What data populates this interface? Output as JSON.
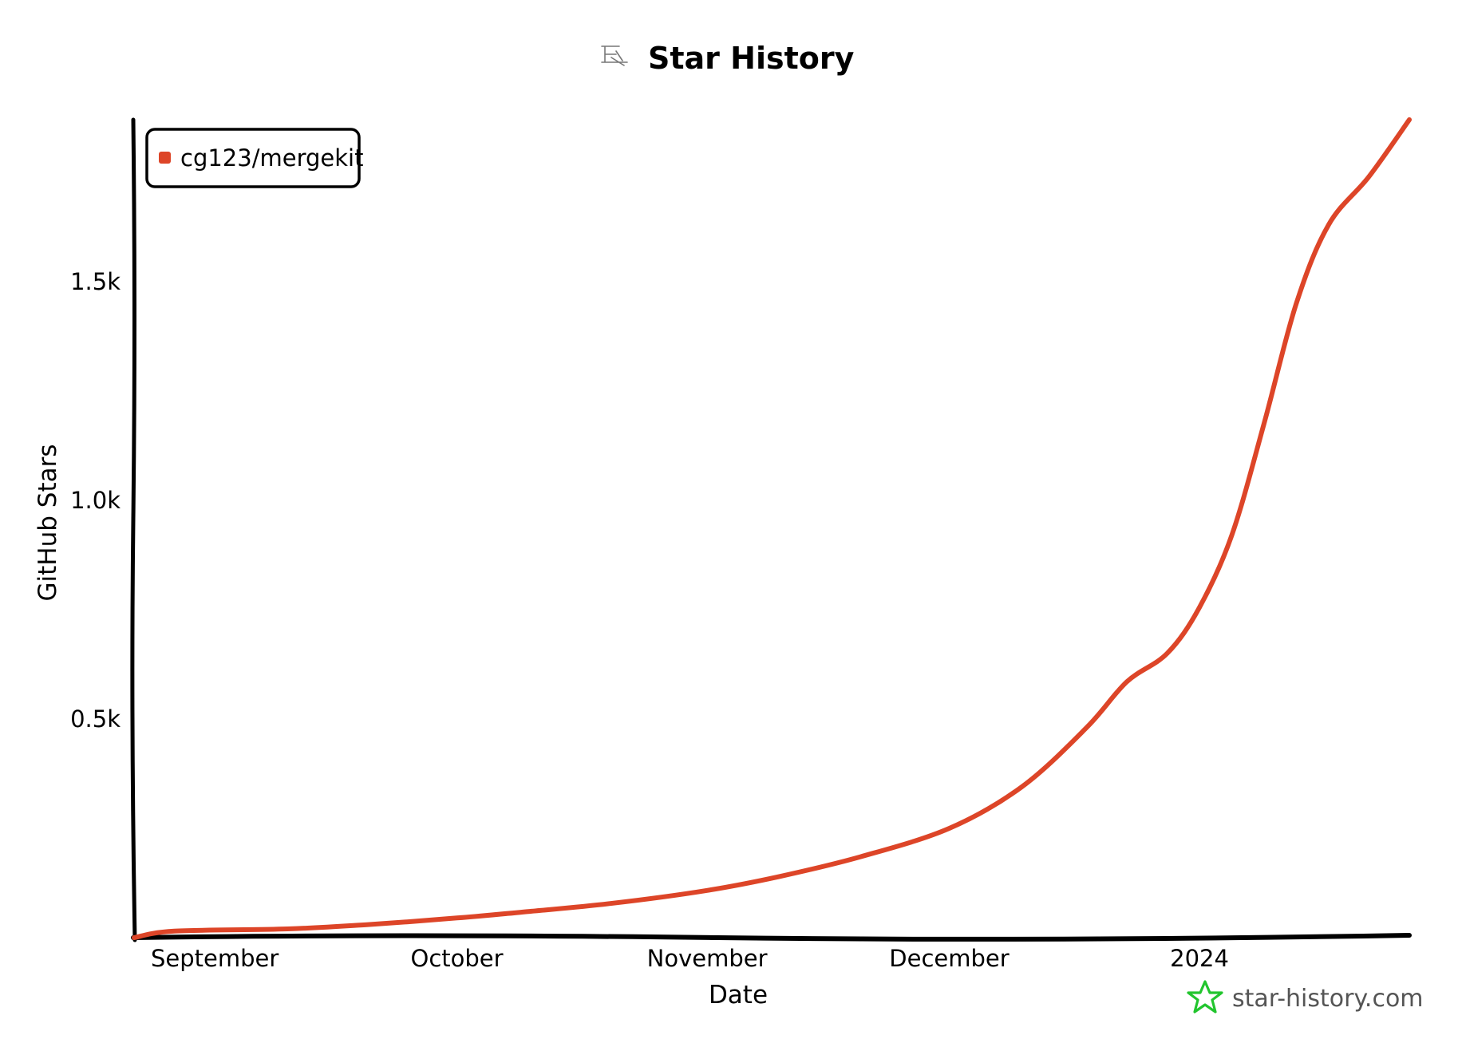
{
  "chart_data": {
    "type": "line",
    "title": "Star History",
    "xlabel": "Date",
    "ylabel": "GitHub Stars",
    "x_tick_labels": [
      "September",
      "October",
      "November",
      "December",
      "2024"
    ],
    "y_tick_labels": [
      "0.5k",
      "1.0k",
      "1.5k"
    ],
    "y_ticks": [
      500,
      1000,
      1500
    ],
    "ylim": [
      0,
      1870
    ],
    "xlim": [
      "2023-08-22",
      "2024-01-27"
    ],
    "x_tick_dates": [
      "2023-09-01",
      "2023-10-01",
      "2023-11-01",
      "2023-12-01",
      "2024-01-01"
    ],
    "grid": false,
    "legend_position": "top-left",
    "series": [
      {
        "name": "cg123/mergekit",
        "color": "#dd4528",
        "points": [
          {
            "x": "2023-08-22",
            "y": 0
          },
          {
            "x": "2023-08-27",
            "y": 15
          },
          {
            "x": "2023-09-10",
            "y": 20
          },
          {
            "x": "2023-09-20",
            "y": 30
          },
          {
            "x": "2023-10-01",
            "y": 45
          },
          {
            "x": "2023-10-10",
            "y": 60
          },
          {
            "x": "2023-10-20",
            "y": 78
          },
          {
            "x": "2023-11-01",
            "y": 108
          },
          {
            "x": "2023-11-10",
            "y": 140
          },
          {
            "x": "2023-11-20",
            "y": 185
          },
          {
            "x": "2023-12-01",
            "y": 250
          },
          {
            "x": "2023-12-10",
            "y": 345
          },
          {
            "x": "2023-12-18",
            "y": 480
          },
          {
            "x": "2023-12-23",
            "y": 585
          },
          {
            "x": "2023-12-28",
            "y": 650
          },
          {
            "x": "2024-01-01",
            "y": 755
          },
          {
            "x": "2024-01-05",
            "y": 920
          },
          {
            "x": "2024-01-09",
            "y": 1175
          },
          {
            "x": "2024-01-13",
            "y": 1450
          },
          {
            "x": "2024-01-17",
            "y": 1630
          },
          {
            "x": "2024-01-22",
            "y": 1740
          },
          {
            "x": "2024-01-27",
            "y": 1870
          }
        ]
      }
    ]
  },
  "watermark": {
    "text": "star-history.com",
    "icon": "star-outline-icon",
    "icon_color": "#22c52e"
  },
  "title_icon": "star-history-logo-icon"
}
